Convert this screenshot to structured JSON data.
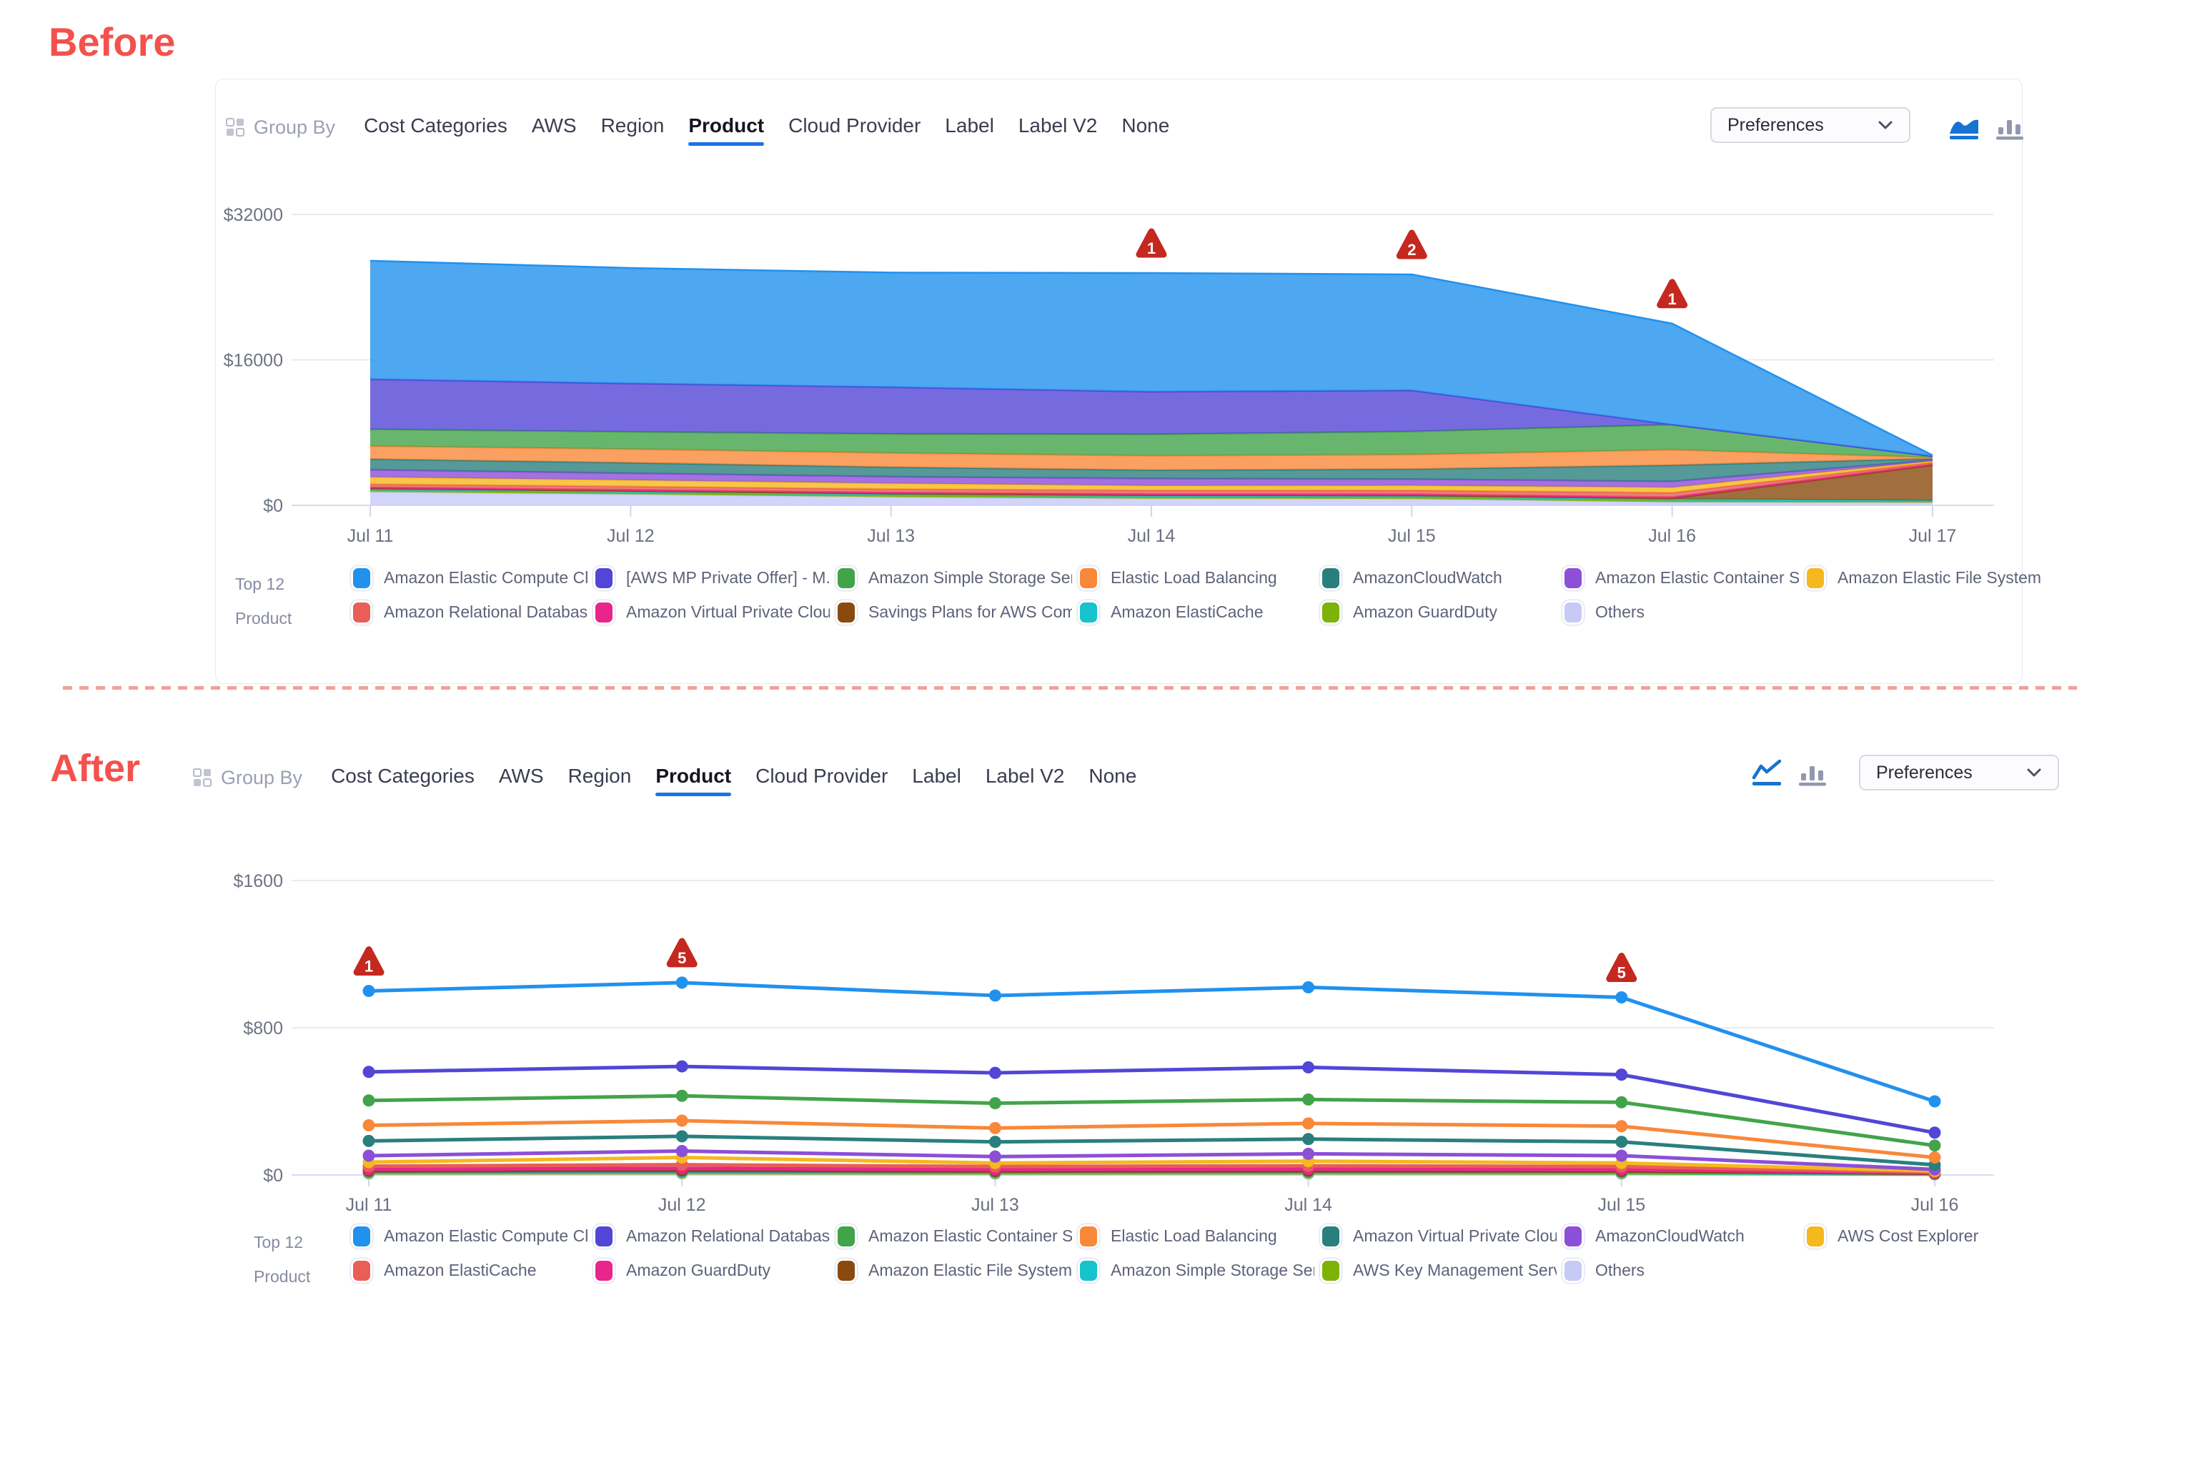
{
  "colors": {
    "accent_blue": "#1A73E8",
    "warning_red": "#C5281F",
    "separator_pink": "#F2A09D",
    "active_icon_blue": "#1773D2",
    "inactive_icon_gray": "#9298ac"
  },
  "before": {
    "label": "Before",
    "toolbar": {
      "group_by_label": "Group By",
      "tabs": [
        "Cost Categories",
        "AWS",
        "Region",
        "Product",
        "Cloud Provider",
        "Label",
        "Label V2",
        "None"
      ],
      "active_tab": "Product",
      "preferences_label": "Preferences",
      "chart_type_icons": [
        "area-chart",
        "bar-chart"
      ],
      "active_chart_type": "area-chart"
    },
    "legend": {
      "title_line1": "Top 12",
      "title_line2": "Product",
      "rows": [
        [
          {
            "label": "Amazon Elastic Compute Cl...",
            "color": "#2191EE"
          },
          {
            "label": "[AWS MP Private Offer] - M...",
            "color": "#5246D6"
          },
          {
            "label": "Amazon Simple Storage Ser...",
            "color": "#42A44A"
          },
          {
            "label": "Elastic Load Balancing",
            "color": "#F98839"
          },
          {
            "label": "AmazonCloudWatch",
            "color": "#2A7F7E"
          },
          {
            "label": "Amazon Elastic Container S...",
            "color": "#8C4FD8"
          },
          {
            "label": "Amazon Elastic File System",
            "color": "#F5B81E"
          }
        ],
        [
          {
            "label": "Amazon Relational Databas...",
            "color": "#E95E57"
          },
          {
            "label": "Amazon Virtual Private Cloud",
            "color": "#E9258C"
          },
          {
            "label": "Savings Plans for AWS Com...",
            "color": "#8A4A0E"
          },
          {
            "label": "Amazon ElastiCache",
            "color": "#15C3CD"
          },
          {
            "label": "Amazon GuardDuty",
            "color": "#7CB305"
          },
          {
            "label": "Others",
            "color": "#C7C9F7"
          }
        ]
      ]
    }
  },
  "after": {
    "label": "After",
    "toolbar": {
      "group_by_label": "Group By",
      "tabs": [
        "Cost Categories",
        "AWS",
        "Region",
        "Product",
        "Cloud Provider",
        "Label",
        "Label V2",
        "None"
      ],
      "active_tab": "Product",
      "preferences_label": "Preferences",
      "chart_type_icons": [
        "line-chart",
        "bar-chart"
      ],
      "active_chart_type": "line-chart"
    },
    "legend": {
      "title_line1": "Top 12",
      "title_line2": "Product",
      "rows": [
        [
          {
            "label": "Amazon Elastic Compute Cl...",
            "color": "#2191EE"
          },
          {
            "label": "Amazon Relational Databas...",
            "color": "#5246D6"
          },
          {
            "label": "Amazon Elastic Container S...",
            "color": "#42A44A"
          },
          {
            "label": "Elastic Load Balancing",
            "color": "#F98839"
          },
          {
            "label": "Amazon Virtual Private Cloud",
            "color": "#2A7F7E"
          },
          {
            "label": "AmazonCloudWatch",
            "color": "#8C4FD8"
          },
          {
            "label": "AWS Cost Explorer",
            "color": "#F5B81E"
          }
        ],
        [
          {
            "label": "Amazon ElastiCache",
            "color": "#E95E57"
          },
          {
            "label": "Amazon GuardDuty",
            "color": "#E9258C"
          },
          {
            "label": "Amazon Elastic File System",
            "color": "#8A4A0E"
          },
          {
            "label": "Amazon Simple Storage Ser...",
            "color": "#15C3CD"
          },
          {
            "label": "AWS Key Management Serv...",
            "color": "#7CB305"
          },
          {
            "label": "Others",
            "color": "#C7C9F7"
          }
        ]
      ]
    }
  },
  "chart_data": [
    {
      "id": "before",
      "type": "area",
      "stacked": true,
      "x_labels": [
        "Jul 11",
        "Jul 12",
        "Jul 13",
        "Jul 14",
        "Jul 15",
        "Jul 16",
        "Jul 17"
      ],
      "ylim": [
        0,
        32000
      ],
      "yticks": [
        {
          "value": 32000,
          "label": "$32000"
        },
        {
          "value": 16000,
          "label": "$16000"
        },
        {
          "value": 0,
          "label": "$0"
        }
      ],
      "grid": true,
      "legend_position": "bottom",
      "series_bottom_to_top": [
        {
          "name": "Others",
          "color": "#C7C9F7",
          "values": [
            1470,
            1200,
            900,
            730,
            700,
            340,
            300
          ]
        },
        {
          "name": "Amazon GuardDuty",
          "color": "#7CB305",
          "values": [
            170,
            170,
            170,
            170,
            170,
            170,
            100
          ]
        },
        {
          "name": "Amazon ElastiCache",
          "color": "#15C3CD",
          "values": [
            190,
            190,
            190,
            190,
            190,
            190,
            120
          ]
        },
        {
          "name": "Savings Plans for AWS Com...",
          "color": "#8A4A0E",
          "values": [
            30,
            30,
            30,
            30,
            30,
            60,
            3900
          ]
        },
        {
          "name": "Amazon Virtual Private Cloud",
          "color": "#E9258C",
          "values": [
            120,
            120,
            120,
            120,
            130,
            140,
            90
          ]
        },
        {
          "name": "Amazon Relational Databas...",
          "color": "#E95E57",
          "values": [
            340,
            360,
            380,
            400,
            420,
            480,
            200
          ]
        },
        {
          "name": "Amazon Elastic File System",
          "color": "#F5B81E",
          "values": [
            790,
            700,
            620,
            520,
            540,
            590,
            150
          ]
        },
        {
          "name": "Amazon Elastic Container S...",
          "color": "#8C4FD8",
          "values": [
            790,
            760,
            740,
            790,
            700,
            660,
            100
          ]
        },
        {
          "name": "AmazonCloudWatch",
          "color": "#2A7F7E",
          "values": [
            1180,
            1150,
            1050,
            920,
            1100,
            1780,
            180
          ]
        },
        {
          "name": "Elastic Load Balancing",
          "color": "#F98839",
          "values": [
            1440,
            1500,
            1550,
            1580,
            1600,
            1700,
            120
          ]
        },
        {
          "name": "Amazon Simple Storage Ser...",
          "color": "#42A44A",
          "values": [
            1840,
            1900,
            2100,
            2360,
            2540,
            2760,
            140
          ]
        },
        {
          "name": "[AWS MP Private Offer] - M...",
          "color": "#5246D6",
          "values": [
            5510,
            5320,
            5150,
            4680,
            4520,
            0,
            0
          ]
        },
        {
          "name": "Amazon Elastic Compute Cl...",
          "color": "#2191EE",
          "values": [
            13030,
            12700,
            12600,
            13060,
            12760,
            11120,
            100
          ]
        }
      ],
      "warnings": [
        {
          "x_label": "Jul 14",
          "count": 1
        },
        {
          "x_label": "Jul 15",
          "count": 2
        },
        {
          "x_label": "Jul 16",
          "count": 1
        }
      ]
    },
    {
      "id": "after",
      "type": "line",
      "stacked": false,
      "x_labels": [
        "Jul 11",
        "Jul 12",
        "Jul 13",
        "Jul 14",
        "Jul 15",
        "Jul 16"
      ],
      "ylim": [
        0,
        1600
      ],
      "yticks": [
        {
          "value": 1600,
          "label": "$1600"
        },
        {
          "value": 800,
          "label": "$800"
        },
        {
          "value": 0,
          "label": "$0"
        }
      ],
      "grid": true,
      "legend_position": "bottom",
      "series": [
        {
          "name": "Amazon Elastic Compute Cl...",
          "color": "#2191EE",
          "values": [
            1000,
            1045,
            975,
            1020,
            965,
            400
          ]
        },
        {
          "name": "Amazon Relational Databas...",
          "color": "#5246D6",
          "values": [
            560,
            590,
            555,
            585,
            545,
            230
          ]
        },
        {
          "name": "Amazon Elastic Container S...",
          "color": "#42A44A",
          "values": [
            405,
            430,
            390,
            410,
            395,
            160
          ]
        },
        {
          "name": "Elastic Load Balancing",
          "color": "#F98839",
          "values": [
            270,
            295,
            255,
            280,
            265,
            95
          ]
        },
        {
          "name": "Amazon Virtual Private Cloud",
          "color": "#2A7F7E",
          "values": [
            185,
            210,
            180,
            195,
            180,
            55
          ]
        },
        {
          "name": "AmazonCloudWatch",
          "color": "#8C4FD8",
          "values": [
            105,
            130,
            100,
            115,
            105,
            30
          ]
        },
        {
          "name": "AWS Cost Explorer",
          "color": "#F5B81E",
          "values": [
            70,
            95,
            65,
            75,
            65,
            22
          ]
        },
        {
          "name": "Amazon ElastiCache",
          "color": "#E95E57",
          "values": [
            48,
            56,
            46,
            50,
            46,
            16
          ]
        },
        {
          "name": "Amazon GuardDuty",
          "color": "#E9258C",
          "values": [
            32,
            36,
            30,
            33,
            30,
            12
          ]
        },
        {
          "name": "Amazon Elastic File System",
          "color": "#8A4A0E",
          "values": [
            22,
            24,
            21,
            22,
            21,
            9
          ]
        },
        {
          "name": "Amazon Simple Storage Ser...",
          "color": "#15C3CD",
          "values": [
            16,
            18,
            15,
            16,
            15,
            7
          ]
        },
        {
          "name": "AWS Key Management Serv...",
          "color": "#7CB305",
          "values": [
            12,
            13,
            11,
            12,
            11,
            5
          ]
        },
        {
          "name": "Others",
          "color": "#C7C9F7",
          "values": [
            6,
            7,
            6,
            6,
            6,
            3
          ]
        }
      ],
      "warnings": [
        {
          "x_label": "Jul 11",
          "count": 1
        },
        {
          "x_label": "Jul 12",
          "count": 5
        },
        {
          "x_label": "Jul 15",
          "count": 5
        }
      ]
    }
  ]
}
